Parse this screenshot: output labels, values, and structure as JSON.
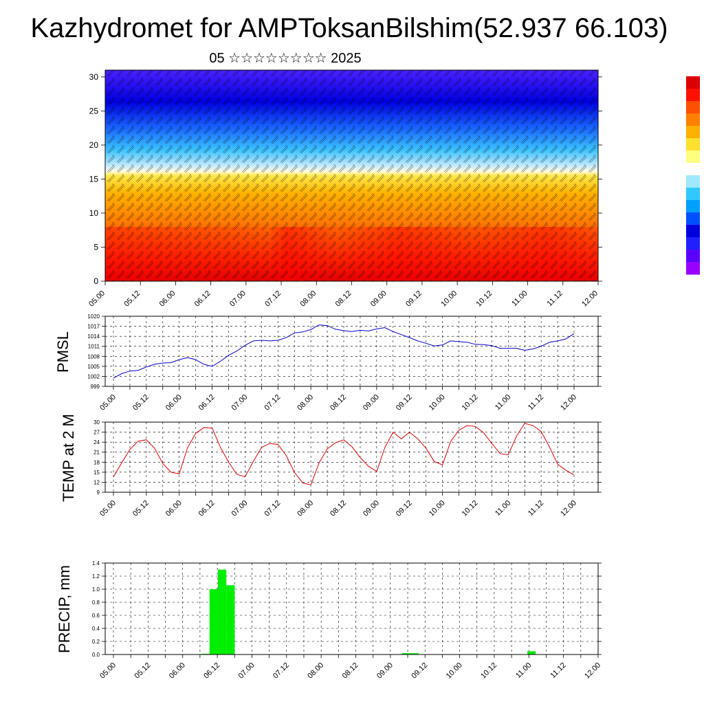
{
  "title": "Kazhydromet for AMPToksanBilshim(52.937 66.103)",
  "subtitle": "05 ☆☆☆☆☆☆☆☆ 2025",
  "x_ticks": [
    "05.00",
    "05.12",
    "06.00",
    "06.12",
    "07.00",
    "07.12",
    "08.00",
    "08.12",
    "09.00",
    "09.12",
    "10.00",
    "10.12",
    "11.00",
    "11.12",
    "12.00"
  ],
  "colors": {
    "pmsl_line": "#0000cc",
    "temp_line": "#dd0000",
    "precip_bar": "#00ee00"
  },
  "chart_data": [
    {
      "type": "heatmap",
      "title": "",
      "xlabel": "",
      "ylabel": "",
      "ylim": [
        0,
        31
      ],
      "y_ticks": [
        0,
        5,
        10,
        15,
        20,
        25,
        30
      ],
      "x_ticks": [
        "05.00",
        "05.12",
        "06.00",
        "06.12",
        "07.00",
        "07.12",
        "08.00",
        "08.12",
        "09.00",
        "09.12",
        "10.00",
        "10.12",
        "11.00",
        "11.12",
        "12.00"
      ],
      "colorbar": [
        "#9900ff",
        "#5a00ff",
        "#2020ff",
        "#0000dd",
        "#0050ff",
        "#00a0ff",
        "#30c8ff",
        "#a0e8ff",
        "#ffffff",
        "#ffff80",
        "#ffe030",
        "#ffb000",
        "#ff8000",
        "#ff5000",
        "#ff1000",
        "#dd0000"
      ],
      "notes": "wind barbs overlaid on colored field; cool colors aloft, warm colors near surface"
    },
    {
      "type": "line",
      "title": "",
      "xlabel": "",
      "ylabel": "PMSL",
      "ylim": [
        999,
        1020
      ],
      "y_ticks": [
        999,
        1002,
        1005,
        1008,
        1011,
        1014,
        1017,
        1020
      ],
      "x_ticks": [
        "05.00",
        "05.12",
        "06.00",
        "06.12",
        "07.00",
        "07.12",
        "08.00",
        "08.12",
        "09.00",
        "09.12",
        "10.00",
        "10.12",
        "11.00",
        "11.12",
        "12.00"
      ],
      "series": [
        {
          "name": "",
          "values": [
            1001.5,
            1002.8,
            1003.6,
            1003.8,
            1004.8,
            1005.6,
            1006.0,
            1006.1,
            1007.0,
            1007.6,
            1007.0,
            1005.6,
            1005.0,
            1006.5,
            1008.3,
            1009.6,
            1011.3,
            1012.6,
            1012.8,
            1012.6,
            1012.8,
            1013.6,
            1015.0,
            1015.3,
            1016.0,
            1017.4,
            1017.2,
            1016.1,
            1015.7,
            1015.4,
            1015.8,
            1015.6,
            1016.2,
            1016.6,
            1015.4,
            1014.5,
            1013.6,
            1012.6,
            1011.9,
            1011.1,
            1011.4,
            1012.6,
            1012.4,
            1012.2,
            1011.6,
            1011.5,
            1011.2,
            1010.4,
            1010.4,
            1010.4,
            1009.8,
            1010.2,
            1011.0,
            1012.2,
            1012.6,
            1013.2,
            1014.8
          ]
        }
      ]
    },
    {
      "type": "line",
      "title": "",
      "xlabel": "",
      "ylabel": "TEMP at 2 M",
      "ylim": [
        9,
        30
      ],
      "y_ticks": [
        9,
        12,
        15,
        18,
        21,
        24,
        27,
        30
      ],
      "x_ticks": [
        "05.00",
        "05.12",
        "06.00",
        "06.12",
        "07.00",
        "07.12",
        "08.00",
        "08.12",
        "09.00",
        "09.12",
        "10.00",
        "10.12",
        "11.00",
        "11.12",
        "12.00"
      ],
      "series": [
        {
          "name": "",
          "values": [
            13.6,
            17.8,
            21.8,
            24.3,
            24.7,
            22.2,
            17.6,
            15.0,
            14.5,
            22.3,
            26.6,
            28.4,
            28.2,
            22.5,
            18.0,
            14.4,
            13.6,
            18.2,
            22.4,
            23.6,
            23.3,
            20.0,
            15.0,
            11.8,
            11.2,
            17.8,
            22.0,
            23.8,
            24.7,
            22.6,
            19.4,
            16.8,
            15.2,
            22.4,
            27.0,
            25.0,
            27.0,
            25.0,
            22.2,
            18.2,
            17.2,
            24.2,
            27.6,
            29.0,
            28.7,
            26.8,
            23.6,
            20.6,
            20.2,
            25.8,
            29.6,
            29.0,
            27.2,
            22.6,
            17.4,
            15.6,
            14.2
          ]
        }
      ]
    },
    {
      "type": "bar",
      "title": "",
      "xlabel": "",
      "ylabel": "PRECIP, mm",
      "ylim": [
        0,
        1.4
      ],
      "y_ticks": [
        "0.0",
        "0.2",
        "0.4",
        "0.6",
        "0.8",
        "1.0",
        "1.2",
        "1.4"
      ],
      "x_ticks": [
        "05.00",
        "05.12",
        "06.00",
        "06.12",
        "07.00",
        "07.12",
        "08.00",
        "08.12",
        "09.00",
        "09.12",
        "10.00",
        "10.12",
        "11.00",
        "11.12",
        "12.00"
      ],
      "values": [
        0,
        0,
        0,
        0,
        0,
        0,
        0,
        0,
        0,
        0,
        0,
        0.01,
        1.0,
        1.3,
        1.06,
        0,
        0,
        0,
        0,
        0,
        0,
        0,
        0,
        0,
        0,
        0,
        0,
        0,
        0,
        0,
        0,
        0,
        0,
        0,
        0,
        0.02,
        0.02,
        0,
        0,
        0,
        0,
        0,
        0,
        0,
        0,
        0,
        0,
        0,
        0,
        0,
        0.05,
        0,
        0,
        0,
        0,
        0,
        0
      ]
    }
  ]
}
